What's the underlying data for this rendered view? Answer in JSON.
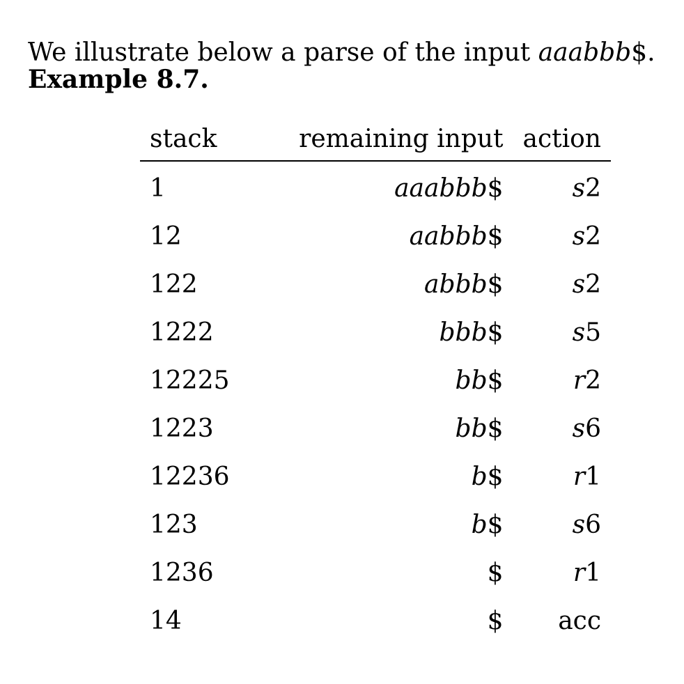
{
  "intro": {
    "text_before": "We illustrate below a parse of the input ",
    "input_italic": "aaabbb",
    "text_after": "$."
  },
  "example_title": "Example 8.7.",
  "table": {
    "headers": {
      "stack": "stack",
      "remaining_input": "remaining input",
      "action": "action"
    },
    "rows": [
      {
        "stack": "1",
        "remaining_symbols": "aaabbb",
        "end_marker": "$",
        "action_letter": "s",
        "action_number": "2"
      },
      {
        "stack": "12",
        "remaining_symbols": "aabbb",
        "end_marker": "$",
        "action_letter": "s",
        "action_number": "2"
      },
      {
        "stack": "122",
        "remaining_symbols": "abbb",
        "end_marker": "$",
        "action_letter": "s",
        "action_number": "2"
      },
      {
        "stack": "1222",
        "remaining_symbols": "bbb",
        "end_marker": "$",
        "action_letter": "s",
        "action_number": "5"
      },
      {
        "stack": "12225",
        "remaining_symbols": "bb",
        "end_marker": "$",
        "action_letter": "r",
        "action_number": "2"
      },
      {
        "stack": "1223",
        "remaining_symbols": "bb",
        "end_marker": "$",
        "action_letter": "s",
        "action_number": "6"
      },
      {
        "stack": "12236",
        "remaining_symbols": "b",
        "end_marker": "$",
        "action_letter": "r",
        "action_number": "1"
      },
      {
        "stack": "123",
        "remaining_symbols": "b",
        "end_marker": "$",
        "action_letter": "s",
        "action_number": "6"
      },
      {
        "stack": "1236",
        "remaining_symbols": "",
        "end_marker": "$",
        "action_letter": "r",
        "action_number": "1"
      },
      {
        "stack": "14",
        "remaining_symbols": "",
        "end_marker": "$",
        "action_letter": "",
        "action_number": "acc"
      }
    ]
  }
}
